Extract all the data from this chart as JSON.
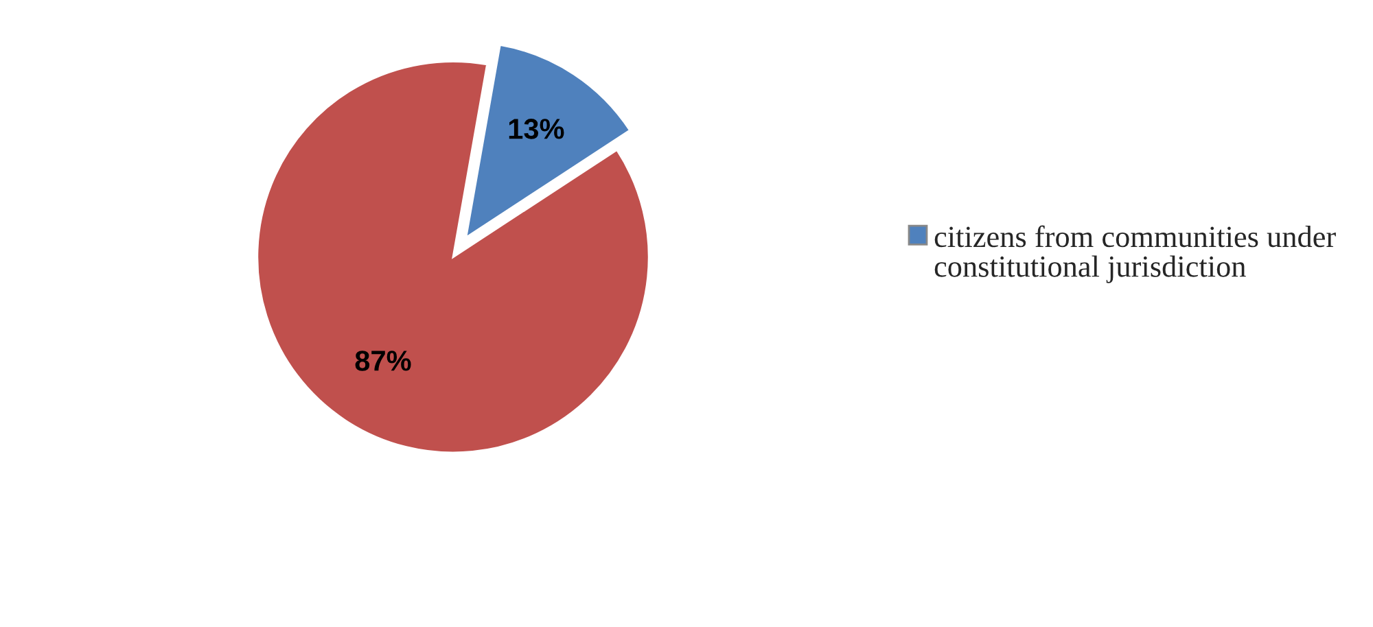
{
  "chart_data": {
    "type": "pie",
    "categories": [
      "citizens from communities under constitutional jurisdiction",
      null
    ],
    "values": [
      13,
      87
    ],
    "colors": [
      "#4f81bd",
      "#c0504d"
    ],
    "value_labels": [
      "13%",
      "87%"
    ],
    "legend": "right"
  }
}
